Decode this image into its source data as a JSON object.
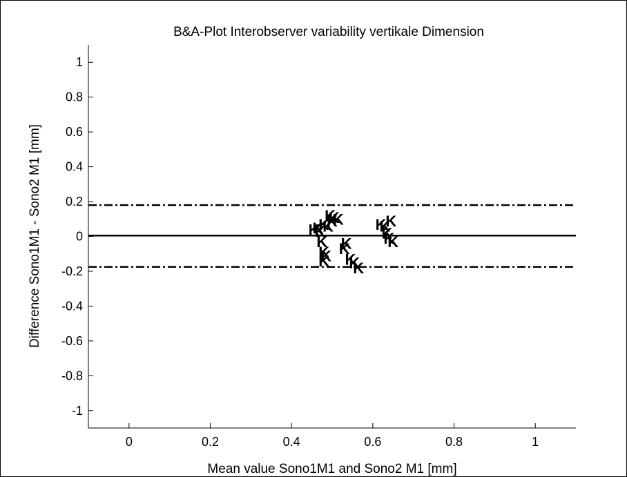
{
  "chart_data": {
    "type": "scatter",
    "title": "B&A-Plot Interobserver variability vertikale Dimension",
    "xlabel": "Mean value Sono1M1 and Sono2 M1 [mm]",
    "ylabel": "Difference Sono1M1 - Sono2 M1 [mm]",
    "xlim": [
      -0.1,
      1.1
    ],
    "ylim": [
      -1.1,
      1.1
    ],
    "x_ticks": [
      0,
      0.2,
      0.4,
      0.6,
      0.8,
      1
    ],
    "x_tick_labels": [
      "0",
      "0.2",
      "0.4",
      "0.6",
      "0.8",
      "1"
    ],
    "y_ticks": [
      -1,
      -0.8,
      -0.6,
      -0.4,
      -0.2,
      0,
      0.2,
      0.4,
      0.6,
      0.8,
      1
    ],
    "y_tick_labels": [
      "-1",
      "-0.8",
      "-0.6",
      "-0.4",
      "-0.2",
      "0",
      "0.2",
      "0.4",
      "0.6",
      "0.8",
      "1"
    ],
    "grid": false,
    "marker_symbol": "K",
    "mean_difference": 0.005,
    "upper_limit_of_agreement": 0.18,
    "lower_limit_of_agreement": -0.175,
    "points": [
      {
        "x": 0.455,
        "y": 0.04
      },
      {
        "x": 0.465,
        "y": 0.05
      },
      {
        "x": 0.47,
        "y": 0.03
      },
      {
        "x": 0.48,
        "y": 0.07
      },
      {
        "x": 0.49,
        "y": 0.06
      },
      {
        "x": 0.495,
        "y": 0.12
      },
      {
        "x": 0.5,
        "y": 0.09
      },
      {
        "x": 0.505,
        "y": 0.11
      },
      {
        "x": 0.515,
        "y": 0.1
      },
      {
        "x": 0.475,
        "y": -0.03
      },
      {
        "x": 0.48,
        "y": -0.09
      },
      {
        "x": 0.485,
        "y": -0.11
      },
      {
        "x": 0.48,
        "y": -0.14
      },
      {
        "x": 0.53,
        "y": -0.07
      },
      {
        "x": 0.535,
        "y": -0.04
      },
      {
        "x": 0.545,
        "y": -0.13
      },
      {
        "x": 0.555,
        "y": -0.15
      },
      {
        "x": 0.565,
        "y": -0.18
      },
      {
        "x": 0.62,
        "y": 0.07
      },
      {
        "x": 0.63,
        "y": 0.06
      },
      {
        "x": 0.645,
        "y": 0.09
      },
      {
        "x": 0.635,
        "y": 0.02
      },
      {
        "x": 0.64,
        "y": -0.01
      },
      {
        "x": 0.65,
        "y": -0.03
      }
    ]
  }
}
